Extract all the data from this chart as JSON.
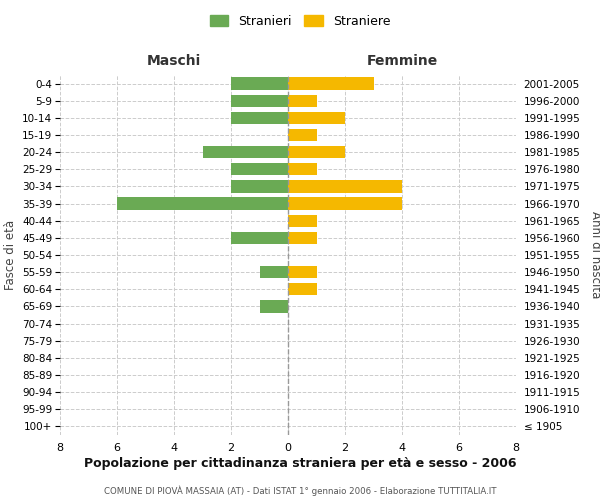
{
  "age_groups": [
    "100+",
    "95-99",
    "90-94",
    "85-89",
    "80-84",
    "75-79",
    "70-74",
    "65-69",
    "60-64",
    "55-59",
    "50-54",
    "45-49",
    "40-44",
    "35-39",
    "30-34",
    "25-29",
    "20-24",
    "15-19",
    "10-14",
    "5-9",
    "0-4"
  ],
  "birth_years": [
    "≤ 1905",
    "1906-1910",
    "1911-1915",
    "1916-1920",
    "1921-1925",
    "1926-1930",
    "1931-1935",
    "1936-1940",
    "1941-1945",
    "1946-1950",
    "1951-1955",
    "1956-1960",
    "1961-1965",
    "1966-1970",
    "1971-1975",
    "1976-1980",
    "1981-1985",
    "1986-1990",
    "1991-1995",
    "1996-2000",
    "2001-2005"
  ],
  "maschi": [
    0,
    0,
    0,
    0,
    0,
    0,
    0,
    1,
    0,
    1,
    0,
    2,
    0,
    6,
    2,
    2,
    3,
    0,
    2,
    2,
    2
  ],
  "femmine": [
    0,
    0,
    0,
    0,
    0,
    0,
    0,
    0,
    1,
    1,
    0,
    1,
    1,
    4,
    4,
    1,
    2,
    1,
    2,
    1,
    3
  ],
  "color_maschi": "#6aaa54",
  "color_femmine": "#f5b800",
  "xlim": 8,
  "title": "Popolazione per cittadinanza straniera per età e sesso - 2006",
  "subtitle": "COMUNE DI PIOVÀ MASSAIA (AT) - Dati ISTAT 1° gennaio 2006 - Elaborazione TUTTITALIA.IT",
  "ylabel_left": "Fasce di età",
  "ylabel_right": "Anni di nascita",
  "label_maschi": "Maschi",
  "label_femmine": "Femmine",
  "legend_maschi": "Stranieri",
  "legend_femmine": "Straniere",
  "background_color": "#ffffff",
  "grid_color": "#cccccc"
}
